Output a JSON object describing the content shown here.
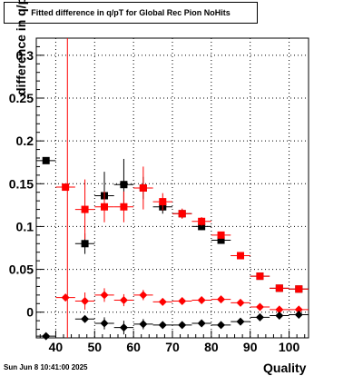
{
  "title": "Fitted difference in q/pT for Global Rec Pion NoHits",
  "footer": "Sun Jun  8 10:41:00 2025",
  "chart_data": {
    "type": "scatter",
    "xlabel": "Quality",
    "ylabel": "difference in q/pT",
    "xlim": [
      35,
      105
    ],
    "ylim": [
      -0.03,
      0.32
    ],
    "x_ticks": [
      40,
      50,
      60,
      70,
      80,
      90,
      100
    ],
    "y_ticks": [
      0,
      0.05,
      0.1,
      0.15,
      0.2,
      0.25,
      0.3
    ],
    "y_tick_labels": [
      "0",
      "0.05",
      "0.1",
      "0.15",
      "0.2",
      "0.25",
      "0.3"
    ],
    "grid": true,
    "vertical_line_x": 43,
    "series": [
      {
        "marker": "square",
        "color": "#000000",
        "points": [
          {
            "x": 37.5,
            "y": 0.177,
            "err": 0.0
          },
          {
            "x": 47.5,
            "y": 0.08,
            "err": 0.012
          },
          {
            "x": 52.5,
            "y": 0.136,
            "err": 0.028
          },
          {
            "x": 57.5,
            "y": 0.149,
            "err": 0.03
          },
          {
            "x": 62.5,
            "y": 0.145,
            "err": 0.013
          },
          {
            "x": 67.5,
            "y": 0.123,
            "err": 0.008
          },
          {
            "x": 72.5,
            "y": 0.115,
            "err": 0.005
          },
          {
            "x": 77.5,
            "y": 0.1,
            "err": 0.004
          },
          {
            "x": 82.5,
            "y": 0.084,
            "err": 0.004
          },
          {
            "x": 87.5,
            "y": 0.066,
            "err": 0.003
          },
          {
            "x": 92.5,
            "y": 0.042,
            "err": 0.003
          },
          {
            "x": 97.5,
            "y": 0.028,
            "err": 0.003
          },
          {
            "x": 102.5,
            "y": 0.027,
            "err": 0.003
          }
        ]
      },
      {
        "marker": "square",
        "color": "#ff0000",
        "points": [
          {
            "x": 42.5,
            "y": 0.146,
            "err": 0.0
          },
          {
            "x": 47.5,
            "y": 0.12,
            "err": 0.035
          },
          {
            "x": 52.5,
            "y": 0.123,
            "err": 0.018
          },
          {
            "x": 57.5,
            "y": 0.123,
            "err": 0.018
          },
          {
            "x": 62.5,
            "y": 0.145,
            "err": 0.025
          },
          {
            "x": 67.5,
            "y": 0.129,
            "err": 0.01
          },
          {
            "x": 72.5,
            "y": 0.115,
            "err": 0.006
          },
          {
            "x": 77.5,
            "y": 0.106,
            "err": 0.005
          },
          {
            "x": 82.5,
            "y": 0.09,
            "err": 0.004
          },
          {
            "x": 87.5,
            "y": 0.066,
            "err": 0.003
          },
          {
            "x": 92.5,
            "y": 0.042,
            "err": 0.003
          },
          {
            "x": 97.5,
            "y": 0.028,
            "err": 0.003
          },
          {
            "x": 102.5,
            "y": 0.027,
            "err": 0.003
          }
        ]
      },
      {
        "marker": "diamond",
        "color": "#ff0000",
        "points": [
          {
            "x": 42.5,
            "y": 0.017,
            "err": 0.0
          },
          {
            "x": 47.5,
            "y": 0.013,
            "err": 0.01
          },
          {
            "x": 52.5,
            "y": 0.02,
            "err": 0.008
          },
          {
            "x": 57.5,
            "y": 0.014,
            "err": 0.007
          },
          {
            "x": 62.5,
            "y": 0.02,
            "err": 0.006
          },
          {
            "x": 67.5,
            "y": 0.012,
            "err": 0.003
          },
          {
            "x": 72.5,
            "y": 0.013,
            "err": 0.002
          },
          {
            "x": 77.5,
            "y": 0.014,
            "err": 0.002
          },
          {
            "x": 82.5,
            "y": 0.015,
            "err": 0.002
          },
          {
            "x": 87.5,
            "y": 0.011,
            "err": 0.002
          },
          {
            "x": 92.5,
            "y": 0.006,
            "err": 0.001
          },
          {
            "x": 97.5,
            "y": 0.003,
            "err": 0.001
          },
          {
            "x": 102.5,
            "y": 0.003,
            "err": 0.001
          }
        ]
      },
      {
        "marker": "diamond",
        "color": "#000000",
        "points": [
          {
            "x": 37.5,
            "y": -0.028,
            "err": 0.0
          },
          {
            "x": 47.5,
            "y": -0.008,
            "err": 0.004
          },
          {
            "x": 52.5,
            "y": -0.013,
            "err": 0.007
          },
          {
            "x": 57.5,
            "y": -0.018,
            "err": 0.008
          },
          {
            "x": 62.5,
            "y": -0.014,
            "err": 0.006
          },
          {
            "x": 67.5,
            "y": -0.015,
            "err": 0.003
          },
          {
            "x": 72.5,
            "y": -0.015,
            "err": 0.002
          },
          {
            "x": 77.5,
            "y": -0.013,
            "err": 0.002
          },
          {
            "x": 82.5,
            "y": -0.015,
            "err": 0.002
          },
          {
            "x": 87.5,
            "y": -0.011,
            "err": 0.002
          },
          {
            "x": 92.5,
            "y": -0.006,
            "err": 0.001
          },
          {
            "x": 97.5,
            "y": -0.004,
            "err": 0.001
          },
          {
            "x": 102.5,
            "y": -0.003,
            "err": 0.001
          }
        ]
      }
    ]
  }
}
